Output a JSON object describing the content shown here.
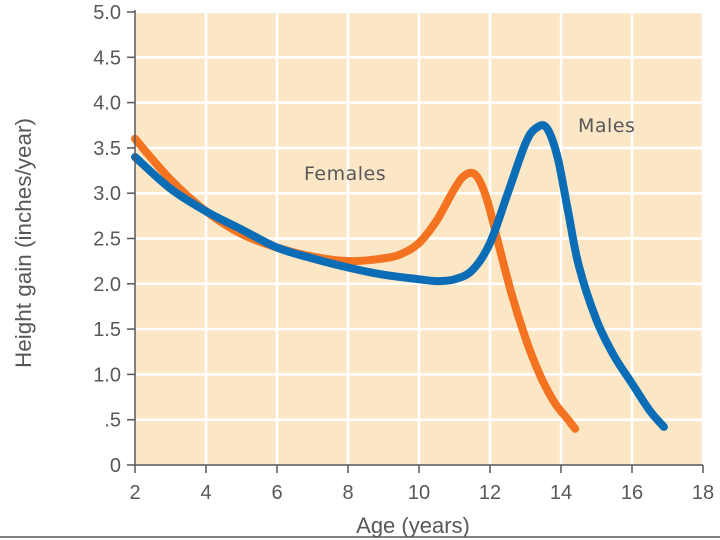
{
  "chart_data": {
    "type": "line",
    "xlabel": "Age (years)",
    "ylabel": "Height gain (inches/year)",
    "xlim": [
      2,
      18
    ],
    "ylim": [
      0,
      5.0
    ],
    "x_ticks": [
      "2",
      "4",
      "6",
      "8",
      "10",
      "12",
      "14",
      "16",
      "18"
    ],
    "y_ticks": [
      "0",
      ".5",
      "1.0",
      "1.5",
      "2.0",
      "2.5",
      "3.0",
      "3.5",
      "4.0",
      "4.5",
      "5.0"
    ],
    "grid": true,
    "background_color": "#fbe7c6",
    "grid_color": "#ffffff",
    "series": [
      {
        "name": "Females",
        "color": "#f47321",
        "x": [
          2,
          3,
          4,
          5,
          6,
          7,
          8,
          9,
          9.5,
          10,
          10.5,
          11,
          11.3,
          11.6,
          11.9,
          12.2,
          12.6,
          13.0,
          13.4,
          13.8,
          14.2,
          14.4
        ],
        "y": [
          3.6,
          3.15,
          2.8,
          2.55,
          2.4,
          2.3,
          2.25,
          2.28,
          2.33,
          2.45,
          2.7,
          3.05,
          3.2,
          3.2,
          2.95,
          2.5,
          1.9,
          1.4,
          1.0,
          0.7,
          0.5,
          0.4
        ]
      },
      {
        "name": "Males",
        "color": "#0a6db5",
        "x": [
          2,
          3,
          4,
          5,
          6,
          7,
          8,
          9,
          10,
          10.5,
          11,
          11.5,
          12,
          12.5,
          13,
          13.3,
          13.6,
          13.9,
          14.2,
          14.5,
          15,
          15.5,
          16,
          16.5,
          16.9
        ],
        "y": [
          3.4,
          3.05,
          2.8,
          2.6,
          2.4,
          2.28,
          2.18,
          2.1,
          2.05,
          2.03,
          2.05,
          2.15,
          2.45,
          3.0,
          3.55,
          3.72,
          3.72,
          3.4,
          2.8,
          2.2,
          1.6,
          1.2,
          0.9,
          0.6,
          0.42
        ]
      }
    ]
  }
}
